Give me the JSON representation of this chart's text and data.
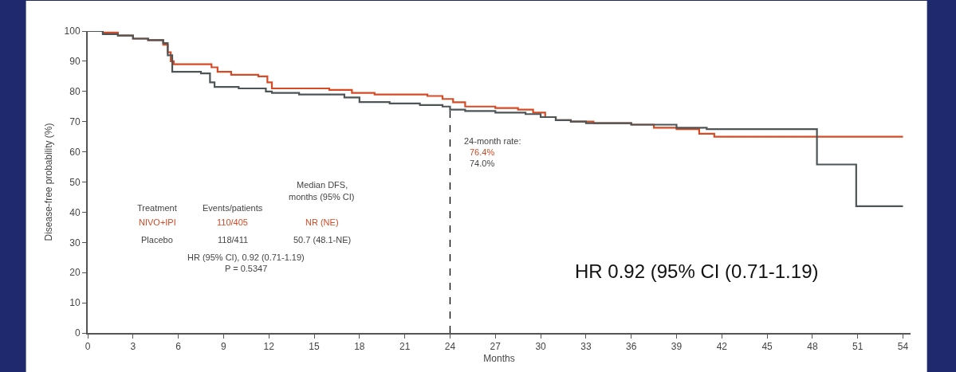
{
  "chart_data": {
    "type": "step",
    "xlabel": "Months",
    "ylabel": "Disease-free probability (%)",
    "xlim": [
      0,
      54.5
    ],
    "xticks": [
      0,
      3,
      6,
      9,
      12,
      15,
      18,
      21,
      24,
      27,
      30,
      33,
      36,
      39,
      42,
      45,
      48,
      51,
      54
    ],
    "ylim": [
      0,
      100
    ],
    "yticks": [
      0,
      10,
      20,
      30,
      40,
      50,
      60,
      70,
      80,
      90,
      100
    ],
    "marker": "none",
    "line_style": "solid",
    "series": [
      {
        "color": "#d64a25",
        "x": [
          0,
          1,
          2,
          3,
          4,
          5,
          5.3,
          5.5,
          5.7,
          8.2,
          8.6,
          9.5,
          11.3,
          11.9,
          12.2,
          16,
          17.5,
          19,
          22.5,
          23.5,
          24.2,
          25,
          27,
          28.5,
          29.5,
          30.3,
          31,
          32,
          33.5,
          36,
          37.5,
          39,
          40.5,
          41.5,
          54
        ],
        "values": [
          100,
          99.5,
          98.5,
          97.5,
          97,
          95.5,
          93,
          90,
          89,
          88,
          86.5,
          85.5,
          85,
          83,
          81,
          80.5,
          79.5,
          79,
          78.5,
          77.5,
          76.4,
          75,
          74.5,
          74,
          73,
          71.5,
          70.5,
          70,
          69.5,
          69,
          68,
          67.5,
          66,
          65,
          65
        ]
      },
      {
        "color": "#4d5557",
        "x": [
          0,
          1,
          2,
          3,
          4,
          5,
          5.3,
          5.6,
          7.5,
          8.1,
          8.4,
          10,
          11.8,
          12.2,
          14,
          17,
          18,
          20,
          22,
          23.5,
          24,
          25,
          27,
          29,
          30,
          31,
          32,
          33,
          36,
          39,
          41,
          48.3,
          50.9,
          54
        ],
        "values": [
          100,
          99,
          98.5,
          97.5,
          97,
          96,
          92,
          86.5,
          86,
          83,
          81.5,
          81,
          80,
          79.5,
          79,
          78,
          76.5,
          76,
          75.5,
          75,
          74,
          73.5,
          73,
          72.5,
          71.5,
          70.5,
          70,
          69.5,
          69,
          68,
          67.5,
          55.8,
          42,
          42
        ]
      }
    ],
    "ref_lines": [
      {
        "axis": "x",
        "value": 24,
        "color": "#000000",
        "line_style": "dashed"
      }
    ],
    "annotations": [
      "24-month rate:",
      "76.4%",
      "74.0%",
      "Treatment",
      "Events/patients",
      "Median DFS,",
      "months (95% CI)",
      "NIVO+IPI",
      "110/405",
      "NR (NE)",
      "Placebo",
      "118/411",
      "50.7 (48.1-NE)",
      "HR (95% CI), 0.92 (0.71-1.19)",
      "P = 0.5347",
      "HR 0.92 (95% CI (0.71-1.19)"
    ]
  }
}
